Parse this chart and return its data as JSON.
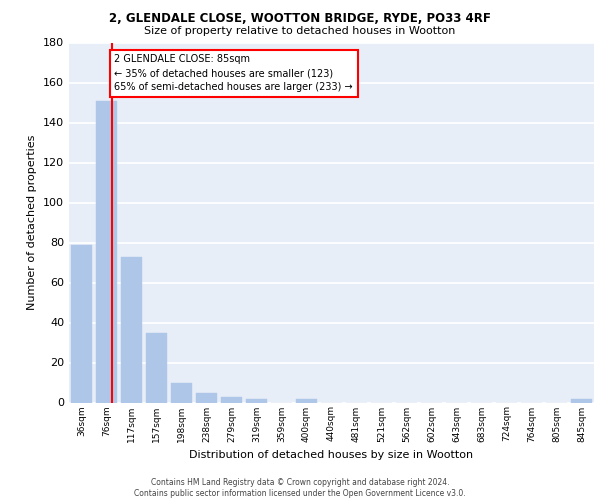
{
  "title_line1": "2, GLENDALE CLOSE, WOOTTON BRIDGE, RYDE, PO33 4RF",
  "title_line2": "Size of property relative to detached houses in Wootton",
  "xlabel": "Distribution of detached houses by size in Wootton",
  "ylabel": "Number of detached properties",
  "bin_labels": [
    "36sqm",
    "76sqm",
    "117sqm",
    "157sqm",
    "198sqm",
    "238sqm",
    "279sqm",
    "319sqm",
    "359sqm",
    "400sqm",
    "440sqm",
    "481sqm",
    "521sqm",
    "562sqm",
    "602sqm",
    "643sqm",
    "683sqm",
    "724sqm",
    "764sqm",
    "805sqm",
    "845sqm"
  ],
  "bar_values": [
    79,
    151,
    73,
    35,
    10,
    5,
    3,
    2,
    0,
    2,
    0,
    0,
    0,
    0,
    0,
    0,
    0,
    0,
    0,
    0,
    2
  ],
  "bar_color": "#aec6e8",
  "bar_edgecolor": "#aec6e8",
  "property_line_x": 1.22,
  "annotation_text": "2 GLENDALE CLOSE: 85sqm\n← 35% of detached houses are smaller (123)\n65% of semi-detached houses are larger (233) →",
  "annotation_box_color": "white",
  "annotation_box_edgecolor": "red",
  "vline_color": "red",
  "ylim": [
    0,
    180
  ],
  "yticks": [
    0,
    20,
    40,
    60,
    80,
    100,
    120,
    140,
    160,
    180
  ],
  "background_color": "#e8eef8",
  "grid_color": "white",
  "footnote": "Contains HM Land Registry data © Crown copyright and database right 2024.\nContains public sector information licensed under the Open Government Licence v3.0."
}
